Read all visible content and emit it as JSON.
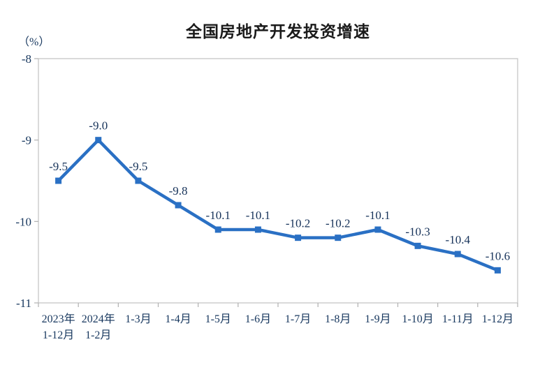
{
  "chart": {
    "title": "全国房地产开发投资增速",
    "unit_label": "（%）"
  },
  "chart_data": {
    "type": "line",
    "title": "全国房地产开发投资增速",
    "ylabel": "（%）",
    "xlabel": "",
    "categories": [
      "2023年\n1-12月",
      "2024年\n1-2月",
      "1-3月",
      "1-4月",
      "1-5月",
      "1-6月",
      "1-7月",
      "1-8月",
      "1-9月",
      "1-10月",
      "1-11月",
      "1-12月"
    ],
    "values": [
      -9.5,
      -9.0,
      -9.5,
      -9.8,
      -10.1,
      -10.1,
      -10.2,
      -10.2,
      -10.1,
      -10.3,
      -10.4,
      -10.6
    ],
    "data_labels": [
      "-9.5",
      "-9.0",
      "-9.5",
      "-9.8",
      "-10.1",
      "-10.1",
      "-10.2",
      "-10.2",
      "-10.1",
      "-10.3",
      "-10.4",
      "-10.6"
    ],
    "ylim": [
      -11,
      -8
    ],
    "yticks": [
      -8,
      -9,
      -10,
      -11
    ],
    "grid": false,
    "legend": "none",
    "marker": "square",
    "colors": {
      "line": "#2A70C4",
      "marker": "#2A70C4",
      "axis": "#c6c6c6",
      "tick": "#b0b0b0",
      "text": "#17375E",
      "title_text": "#1a1a1a"
    }
  }
}
